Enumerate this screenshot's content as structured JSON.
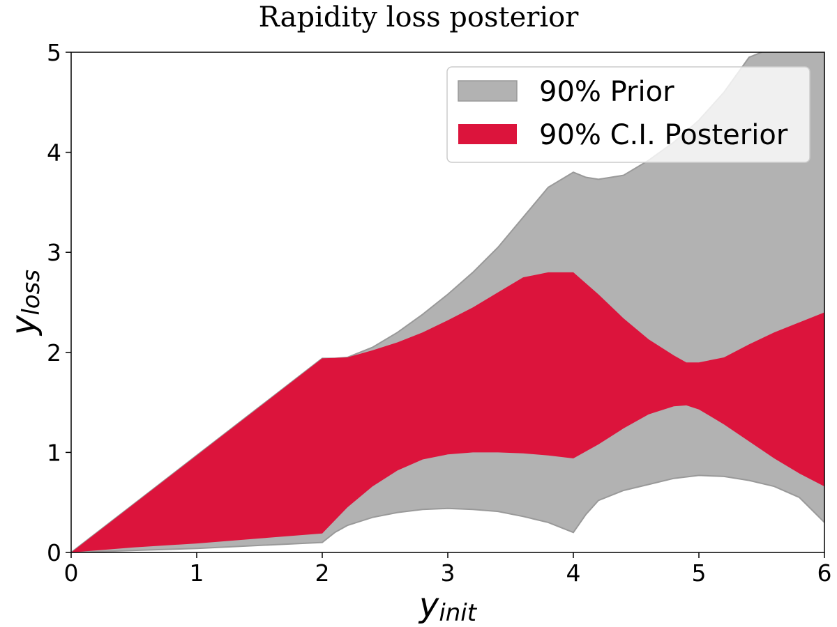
{
  "chart_data": {
    "type": "area",
    "title": "Rapidity loss posterior",
    "xlabel": {
      "main": "y",
      "sub": "init"
    },
    "ylabel": {
      "main": "y",
      "sub": "loss"
    },
    "xlim": [
      0,
      6
    ],
    "ylim": [
      0,
      5
    ],
    "x_ticks": [
      "0",
      "1",
      "2",
      "3",
      "4",
      "5",
      "6"
    ],
    "y_ticks": [
      "0",
      "1",
      "2",
      "3",
      "4",
      "5"
    ],
    "grid": false,
    "legend_position": "top-right",
    "series": [
      {
        "name": "90% Prior",
        "color": "#b2b2b2",
        "edge_color": "#999999",
        "x": [
          0,
          0.5,
          1,
          1.5,
          2,
          2.1,
          2.2,
          2.4,
          2.6,
          2.8,
          3,
          3.2,
          3.4,
          3.6,
          3.8,
          4,
          4.1,
          4.2,
          4.4,
          4.6,
          4.8,
          5,
          5.2,
          5.4,
          5.6,
          5.8,
          6
        ],
        "lower": [
          0,
          0.02,
          0.04,
          0.07,
          0.1,
          0.2,
          0.27,
          0.35,
          0.4,
          0.43,
          0.44,
          0.43,
          0.41,
          0.36,
          0.3,
          0.2,
          0.38,
          0.52,
          0.62,
          0.68,
          0.74,
          0.77,
          0.76,
          0.72,
          0.66,
          0.55,
          0.3
        ],
        "upper": [
          0,
          0.485,
          0.97,
          1.455,
          1.94,
          1.94,
          1.95,
          2.05,
          2.2,
          2.38,
          2.58,
          2.8,
          3.05,
          3.35,
          3.65,
          3.8,
          3.75,
          3.73,
          3.77,
          3.92,
          4.1,
          4.32,
          4.6,
          4.95,
          5.05,
          5.05,
          5.05
        ]
      },
      {
        "name": "90% C.I. Posterior",
        "color": "#dc143c",
        "x": [
          0,
          0.5,
          1,
          1.5,
          2,
          2.2,
          2.4,
          2.6,
          2.8,
          3,
          3.2,
          3.4,
          3.6,
          3.8,
          4,
          4.2,
          4.4,
          4.6,
          4.8,
          4.9,
          5,
          5.2,
          5.4,
          5.6,
          5.8,
          6
        ],
        "lower": [
          0,
          0.05,
          0.09,
          0.14,
          0.19,
          0.45,
          0.66,
          0.82,
          0.93,
          0.98,
          1.0,
          1.0,
          0.99,
          0.97,
          0.94,
          1.08,
          1.24,
          1.38,
          1.46,
          1.47,
          1.43,
          1.28,
          1.11,
          0.94,
          0.79,
          0.66
        ],
        "upper": [
          0,
          0.485,
          0.97,
          1.455,
          1.94,
          1.95,
          2.02,
          2.1,
          2.2,
          2.32,
          2.45,
          2.6,
          2.75,
          2.8,
          2.8,
          2.58,
          2.34,
          2.13,
          1.97,
          1.9,
          1.9,
          1.95,
          2.08,
          2.2,
          2.3,
          2.4
        ]
      }
    ]
  }
}
